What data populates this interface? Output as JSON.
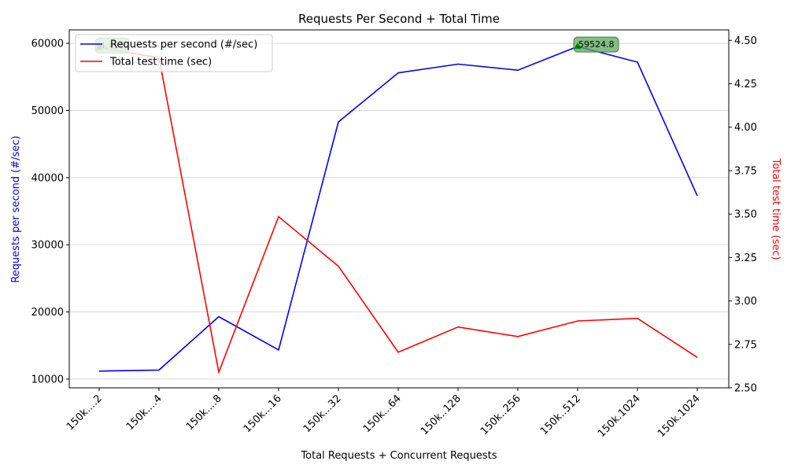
{
  "chart_data": {
    "type": "line",
    "title": "Requests Per Second + Total Time",
    "xlabel": "Total Requests + Concurrent Requests",
    "ylabel_left": "Requests per second (#/sec)",
    "ylabel_right": "Total test time (sec)",
    "categories": [
      "150k....2",
      "150k....4",
      "150k....8",
      "150k...16",
      "150k...32",
      "150k...64",
      "150k..128",
      "150k..256",
      "150k..512",
      "150k.1024",
      "150k.1024"
    ],
    "series": [
      {
        "name": "Requests per second (#/sec)",
        "axis": "left",
        "color": "#0000ff",
        "values": [
          11200,
          11350,
          19300,
          14350,
          48300,
          55600,
          56900,
          56000,
          59524.8,
          57200,
          37300
        ]
      },
      {
        "name": "Total test time (sec)",
        "axis": "right",
        "color": "#ff0000",
        "values": [
          4.458,
          4.4,
          2.59,
          3.485,
          3.2,
          2.705,
          2.85,
          2.795,
          2.885,
          2.9,
          2.675
        ]
      }
    ],
    "ylim_left": [
      8700,
      62000
    ],
    "yticks_left": [
      10000,
      20000,
      30000,
      40000,
      50000,
      60000
    ],
    "ylim_right": [
      2.5,
      4.56
    ],
    "yticks_right": [
      "2.50",
      "2.75",
      "3.00",
      "3.25",
      "3.50",
      "3.75",
      "4.00",
      "4.25",
      "4.50"
    ],
    "grid": "horizontal",
    "legend": "top-left",
    "annotations": [
      {
        "series": 1,
        "index": 0,
        "text": "4.458"
      },
      {
        "series": 0,
        "index": 8,
        "text": "59524.8"
      }
    ],
    "annotation_colors": {
      "box": "#5aaa5a",
      "marker": "#008000"
    }
  }
}
